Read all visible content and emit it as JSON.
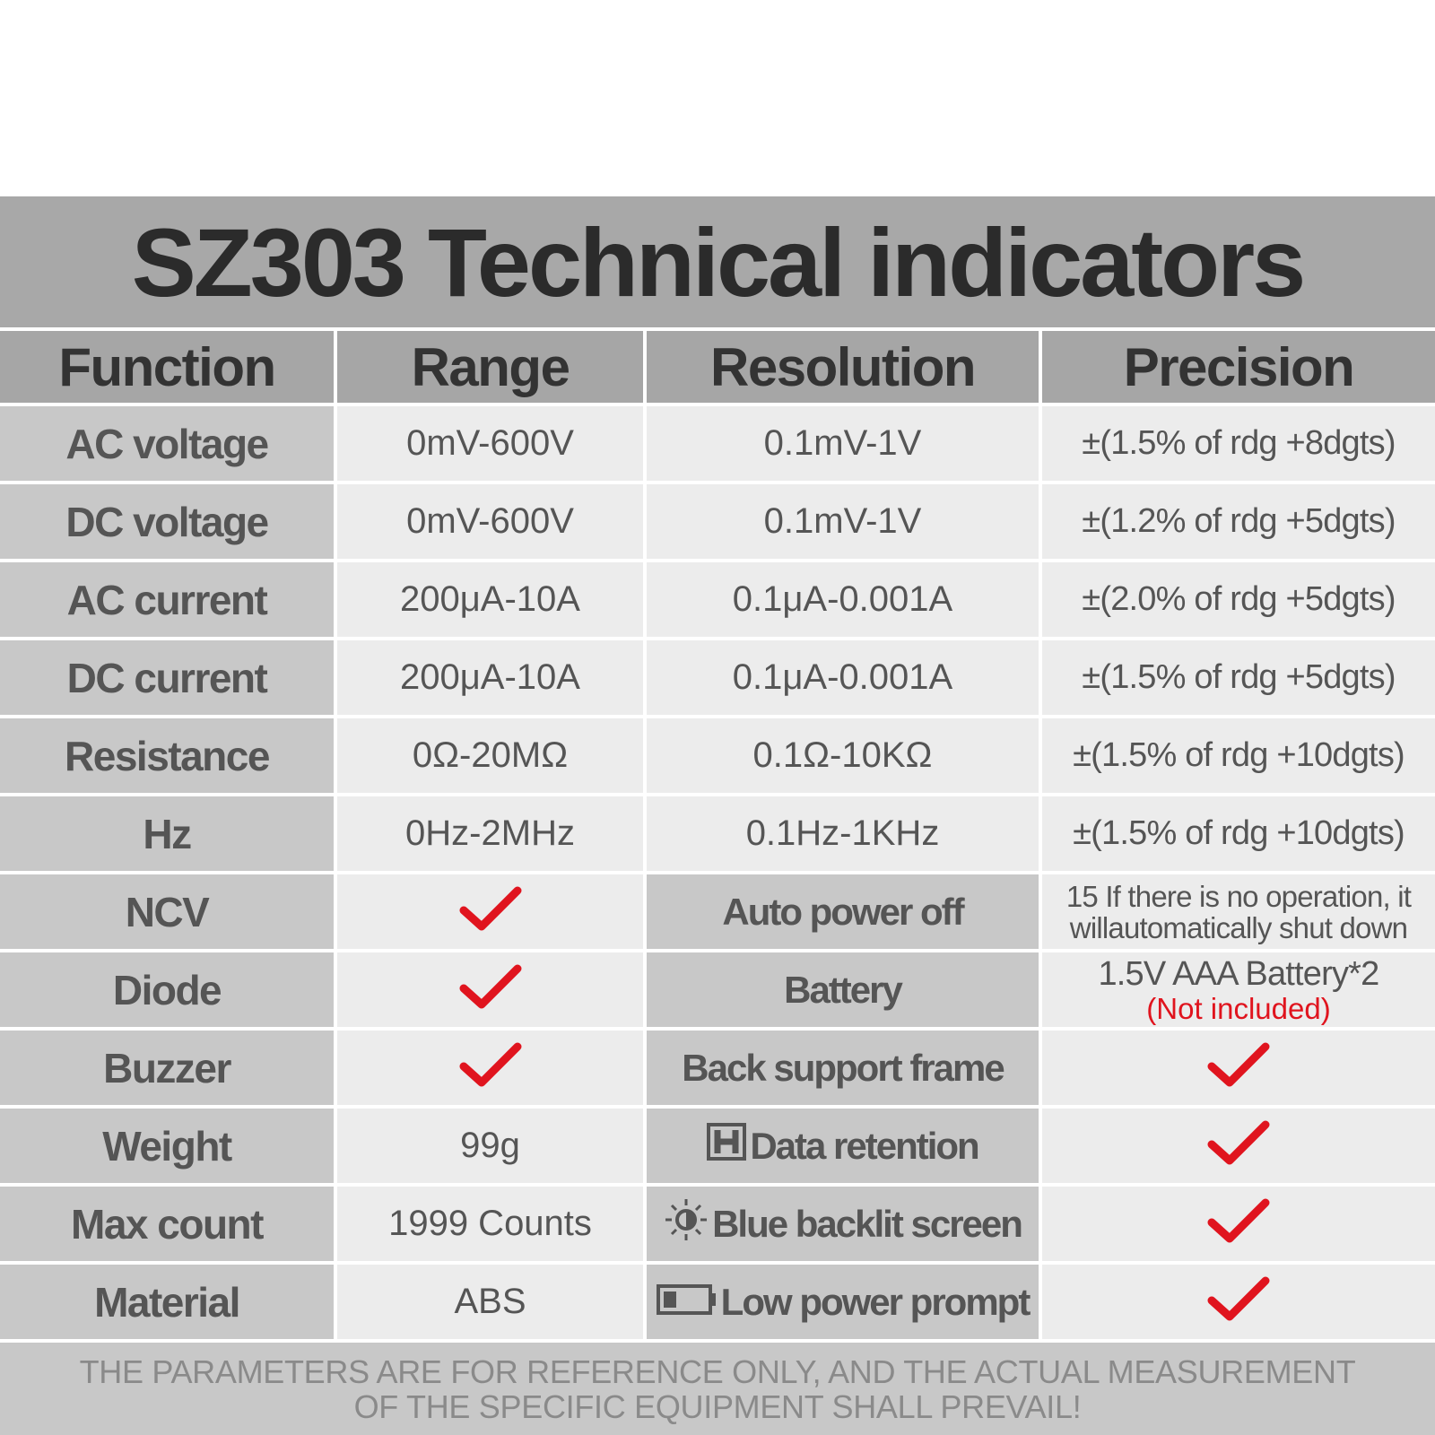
{
  "title": "SZ303 Technical indicators",
  "table": {
    "header": [
      "Function",
      "Range",
      "Resolution",
      "Precision"
    ],
    "rows": [
      [
        "AC voltage",
        "0mV-600V",
        "0.1mV-1V",
        "±(1.5% of rdg +8dgts)"
      ],
      [
        "DC voltage",
        "0mV-600V",
        "0.1mV-1V",
        "±(1.2% of rdg +5dgts)"
      ],
      [
        "AC current",
        "200μA-10A",
        "0.1μA-0.001A",
        "±(2.0% of rdg +5dgts)"
      ],
      [
        "DC current",
        "200μA-10A",
        "0.1μA-0.001A",
        "±(1.5% of rdg +5dgts)"
      ],
      [
        "Resistance",
        "0Ω-20MΩ",
        "0.1Ω-10KΩ",
        "±(1.5% of rdg +10dgts)"
      ],
      [
        "Hz",
        "0Hz-2MHz",
        "0.1Hz-1KHz",
        "±(1.5% of rdg +10dgts)"
      ]
    ],
    "lower_rows": [
      {
        "function": "NCV",
        "feature": "Auto power off",
        "detail_lines": [
          "15 If there is no operation, it",
          "willautomatically shut down"
        ]
      },
      {
        "function": "Diode",
        "feature": "Battery",
        "detail_lines": [
          "1.5V AAA Battery*2"
        ],
        "note": "(Not included)"
      },
      {
        "function": "Buzzer",
        "feature": "Back support frame"
      },
      {
        "function": "Weight",
        "range": "99g",
        "feature": "Data retention"
      },
      {
        "function": "Max count",
        "range": "1999 Counts",
        "feature": "Blue backlit screen"
      },
      {
        "function": "Material",
        "range": "ABS",
        "feature": "Low power prompt"
      }
    ]
  },
  "footer": "THE PARAMETERS ARE FOR REFERENCE ONLY, AND THE ACTUAL MEASUREMENT OF THE SPECIFIC EQUIPMENT SHALL PREVAIL!"
}
